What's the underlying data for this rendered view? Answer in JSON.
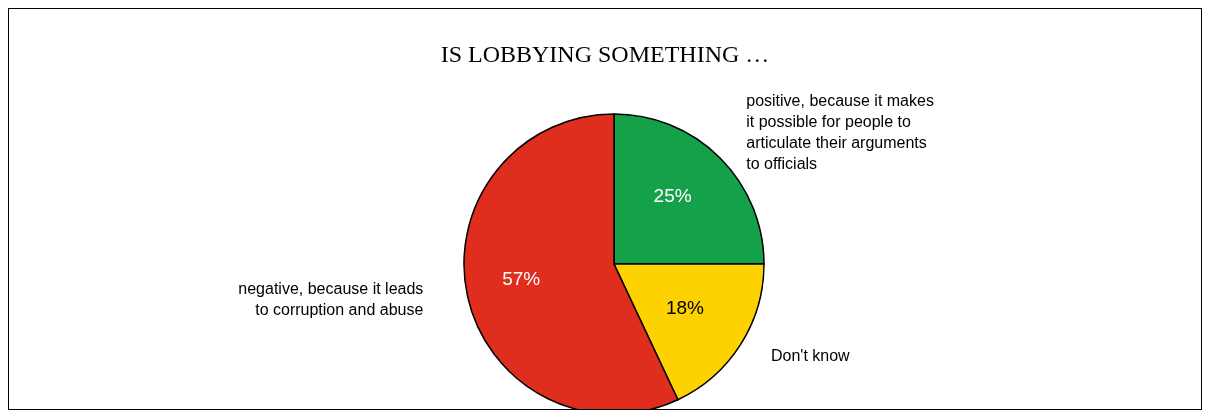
{
  "chart_data": {
    "type": "pie",
    "title": "IS LOBBYING SOMETHING …",
    "categories": [
      "positive, because it makes it possible for people to articulate their arguments to officials",
      "Don't know",
      "negative, because it leads to corruption and abuse"
    ],
    "values": [
      25,
      18,
      57
    ],
    "colors": [
      "#15a04a",
      "#fdd200",
      "#e02e1e"
    ],
    "value_labels": [
      "25%",
      "18%",
      "57%"
    ]
  }
}
